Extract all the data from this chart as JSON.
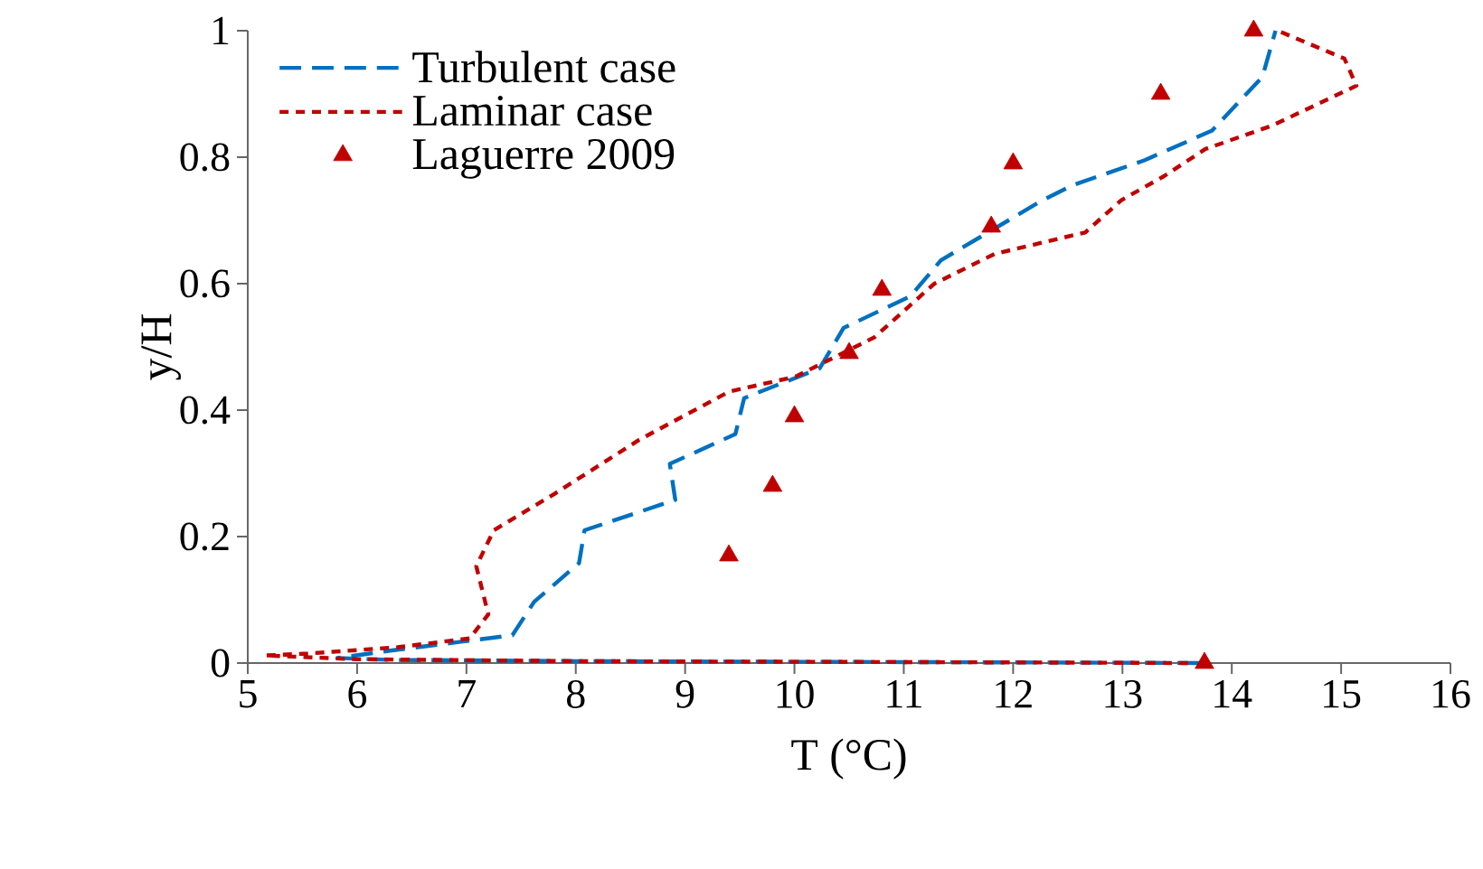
{
  "chart_data": {
    "type": "line",
    "xlabel": "T (°C)",
    "ylabel": "y/H",
    "xlim": [
      5,
      16
    ],
    "xticks": [
      5,
      6,
      7,
      8,
      9,
      10,
      11,
      12,
      13,
      14,
      15,
      16
    ],
    "ylim": [
      0,
      1
    ],
    "yticks": [
      0,
      0.2,
      0.4,
      0.6,
      0.8,
      1
    ],
    "grid": false,
    "legend": "top left",
    "series": [
      {
        "name": "Turbulent case",
        "line_style": "dashed",
        "color": "#0070c0",
        "x": [
          13.7,
          12,
          10,
          8,
          6.3,
          5.82,
          6.32,
          7.42,
          7.62,
          8.03,
          8.08,
          8.91,
          8.86,
          9.46,
          9.54,
          10.23,
          10.45,
          11.06,
          11.34,
          12.27,
          12.55,
          13.2,
          13.82,
          14.28,
          14.4
        ],
        "values": [
          0.0,
          0.001,
          0.002,
          0.003,
          0.005,
          0.008,
          0.02,
          0.044,
          0.097,
          0.158,
          0.21,
          0.258,
          0.315,
          0.362,
          0.419,
          0.466,
          0.53,
          0.58,
          0.637,
          0.732,
          0.756,
          0.795,
          0.842,
          0.927,
          1.0
        ]
      },
      {
        "name": "Laminar case",
        "line_style": "dotted",
        "color": "#c00000",
        "x": [
          13.6,
          12,
          10,
          8,
          6,
          5.16,
          5.55,
          6.37,
          7.03,
          7.2,
          7.09,
          7.25,
          7.8,
          8.58,
          9.4,
          10.01,
          10.73,
          11.28,
          11.83,
          12.66,
          12.99,
          13.38,
          13.76,
          14.37,
          15.14,
          15.03,
          14.42
        ],
        "values": [
          0.0,
          0.001,
          0.002,
          0.003,
          0.006,
          0.012,
          0.015,
          0.025,
          0.039,
          0.077,
          0.153,
          0.21,
          0.267,
          0.353,
          0.429,
          0.453,
          0.515,
          0.6,
          0.647,
          0.681,
          0.732,
          0.77,
          0.813,
          0.85,
          0.913,
          0.956,
          1.0
        ]
      },
      {
        "name": "Laguerre 2009",
        "type": "scatter",
        "marker": "triangle",
        "color": "#c00000",
        "x": [
          9.4,
          9.8,
          10,
          10.5,
          10.8,
          11.8,
          12,
          13.35,
          14.2,
          13.75
        ],
        "values": [
          0.17,
          0.28,
          0.39,
          0.49,
          0.59,
          0.69,
          0.79,
          0.9,
          1.0,
          0.0
        ]
      }
    ]
  }
}
